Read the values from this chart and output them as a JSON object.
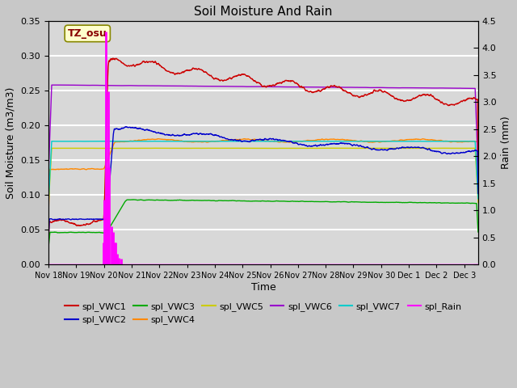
{
  "title": "Soil Moisture And Rain",
  "xlabel": "Time",
  "ylabel_left": "Soil Moisture (m3/m3)",
  "ylabel_right": "Rain (mm)",
  "ylim_left": [
    0.0,
    0.35
  ],
  "ylim_right": [
    0.0,
    4.5
  ],
  "xlim_days": [
    0,
    15.5
  ],
  "xtick_labels": [
    "Nov 18",
    "Nov 19",
    "Nov 20",
    "Nov 21",
    "Nov 22",
    "Nov 23",
    "Nov 24",
    "Nov 25",
    "Nov 26",
    "Nov 27",
    "Nov 28",
    "Nov 29",
    "Nov 30",
    "Dec 1",
    "Dec 2",
    "Dec 3"
  ],
  "fig_bg_color": "#c8c8c8",
  "plot_bg_color": "#d8d8d8",
  "band_color": "#bebebe",
  "grid_color": "#ffffff",
  "label_box": {
    "text": "TZ_osu",
    "facecolor": "#ffffcc",
    "edgecolor": "#888800"
  },
  "series_colors": {
    "VWC1": "#cc0000",
    "VWC2": "#0000cc",
    "VWC3": "#00aa00",
    "VWC4": "#ff8800",
    "VWC5": "#cccc00",
    "VWC6": "#9900cc",
    "VWC7": "#00cccc",
    "Rain": "#ff00ff"
  },
  "legend_row1": [
    {
      "label": "spl_VWC1",
      "color": "#cc0000"
    },
    {
      "label": "spl_VWC2",
      "color": "#0000cc"
    },
    {
      "label": "spl_VWC3",
      "color": "#00aa00"
    },
    {
      "label": "spl_VWC4",
      "color": "#ff8800"
    },
    {
      "label": "spl_VWC5",
      "color": "#cccc00"
    },
    {
      "label": "spl_VWC6",
      "color": "#9900cc"
    }
  ],
  "legend_row2": [
    {
      "label": "spl_VWC7",
      "color": "#00cccc"
    },
    {
      "label": "spl_Rain",
      "color": "#ff00ff"
    }
  ]
}
